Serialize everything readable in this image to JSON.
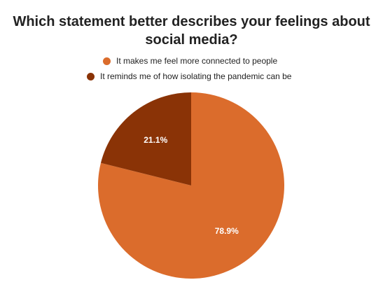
{
  "chart_data": {
    "type": "pie",
    "title_lines": [
      "Which statement better describes your feelings about",
      "social media?"
    ],
    "categories": [
      "It makes me feel more connected to people",
      "It reminds me of how isolating the pandemic can be"
    ],
    "values": [
      78.9,
      21.1
    ],
    "value_labels": [
      "78.9%",
      "21.1%"
    ],
    "colors": [
      "#DB6C2C",
      "#8A3306"
    ],
    "legend_position": "top"
  }
}
